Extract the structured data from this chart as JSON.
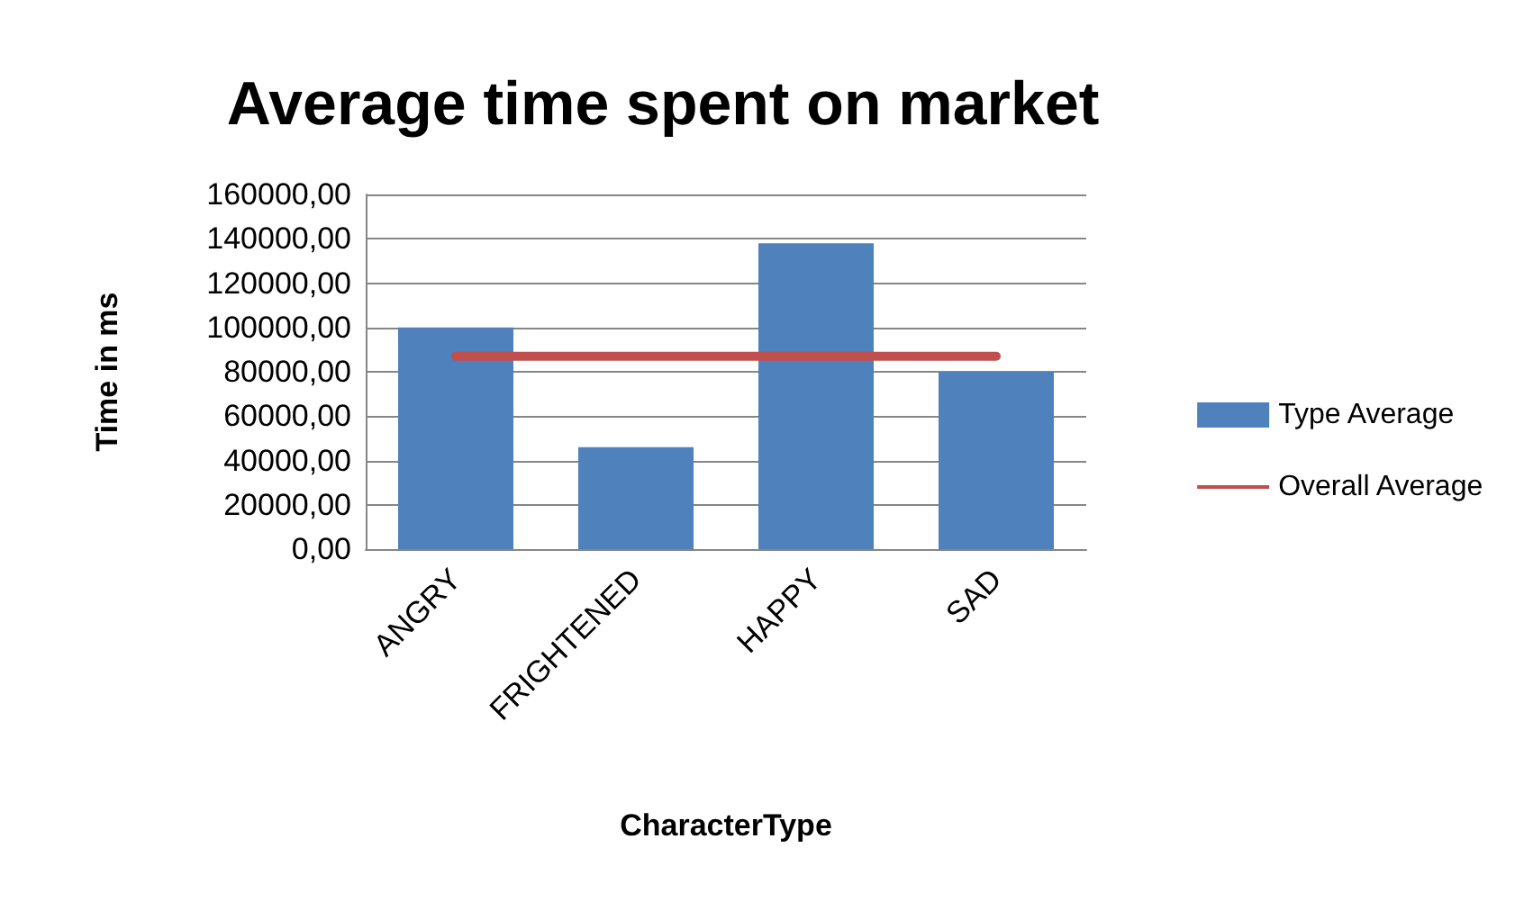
{
  "chart_data": {
    "type": "bar",
    "title": "Average time spent on market",
    "xlabel": "CharacterType",
    "ylabel": "Time in ms",
    "categories": [
      "ANGRY",
      "FRIGHTENED",
      "HAPPY",
      "SAD"
    ],
    "series": [
      {
        "name": "Type Average",
        "color": "#4f81bd",
        "values": [
          100000,
          46000,
          138000,
          80000
        ]
      },
      {
        "name": "Overall Average",
        "type": "line",
        "color": "#c0504d",
        "values": [
          87000,
          87000,
          87000,
          87000
        ]
      }
    ],
    "ylim": [
      0,
      160000
    ],
    "yticks": [
      {
        "value": 0,
        "label": "0,00"
      },
      {
        "value": 20000,
        "label": "20000,00"
      },
      {
        "value": 40000,
        "label": "40000,00"
      },
      {
        "value": 60000,
        "label": "60000,00"
      },
      {
        "value": 80000,
        "label": "80000,00"
      },
      {
        "value": 100000,
        "label": "100000,00"
      },
      {
        "value": 120000,
        "label": "120000,00"
      },
      {
        "value": 140000,
        "label": "140000,00"
      },
      {
        "value": 160000,
        "label": "160000,00"
      }
    ],
    "grid": "y",
    "legend": "right",
    "marker": "none"
  }
}
